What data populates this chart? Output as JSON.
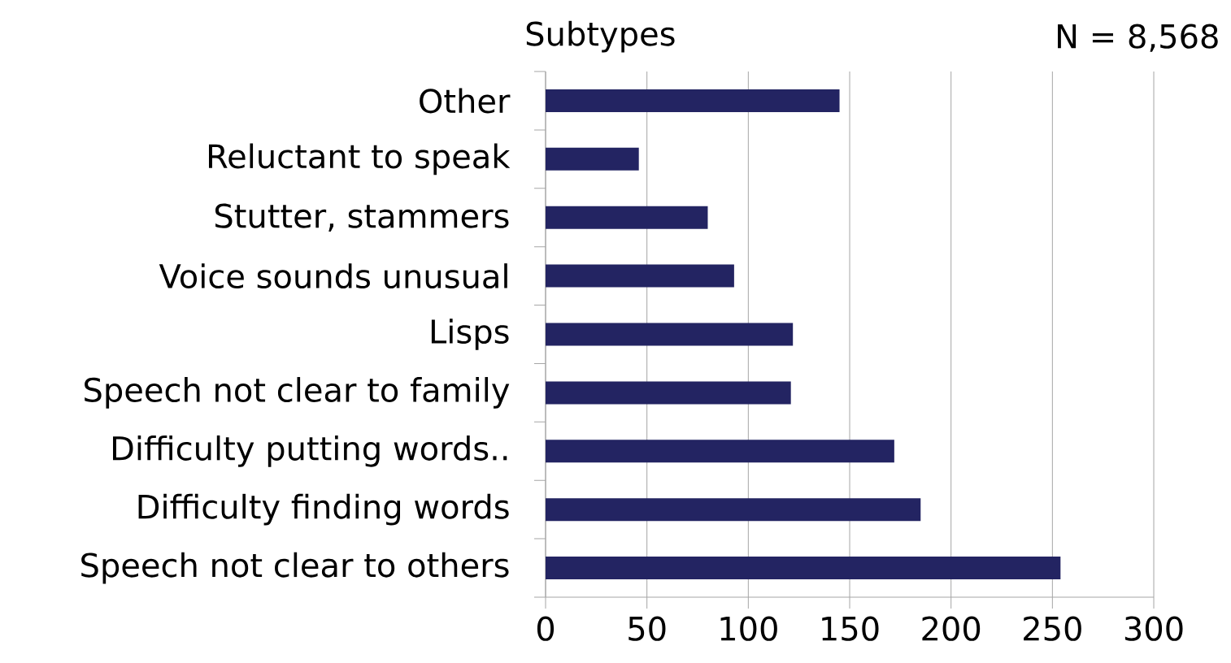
{
  "chart_data": {
    "type": "bar",
    "orientation": "horizontal",
    "title": "Subtypes",
    "categories": [
      "Other",
      "Reluctant to speak",
      "Stutter, stammers",
      "Voice sounds unusual",
      "Lisps",
      "Speech not clear to family",
      "Difficulty putting words..",
      "Difficulty finding words",
      "Speech not clear to others"
    ],
    "values": [
      145,
      46,
      80,
      93,
      122,
      121,
      172,
      185,
      254
    ],
    "color": "#232462",
    "xlim": [
      0,
      300
    ],
    "xticks": [
      0,
      50,
      100,
      150,
      200,
      250,
      300
    ],
    "grid": "x",
    "annotations": [
      "N = 8,568"
    ]
  }
}
